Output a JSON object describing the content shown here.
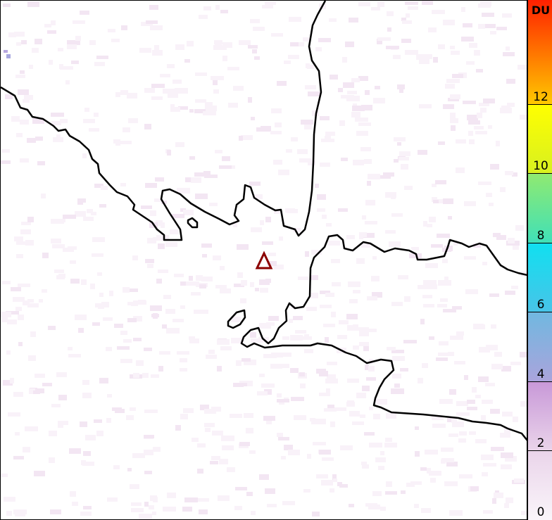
{
  "colorbar": {
    "unit": "DU",
    "range": [
      0,
      15
    ],
    "ticks": [
      {
        "value": 0,
        "label": "0"
      },
      {
        "value": 2,
        "label": "2"
      },
      {
        "value": 4,
        "label": "4"
      },
      {
        "value": 6,
        "label": "6"
      },
      {
        "value": 8,
        "label": "8"
      },
      {
        "value": 10,
        "label": "10"
      },
      {
        "value": 12,
        "label": "12"
      }
    ],
    "color_stops": [
      {
        "value": 0,
        "color": "#faf5fa"
      },
      {
        "value": 2,
        "color": "#ead4ea"
      },
      {
        "value": 4,
        "color": "#c898d8"
      },
      {
        "value": 4,
        "color": "#aaa4dc"
      },
      {
        "value": 6,
        "color": "#70b8e0"
      },
      {
        "value": 6,
        "color": "#48c4e8"
      },
      {
        "value": 8,
        "color": "#10e0f0"
      },
      {
        "value": 8,
        "color": "#40e0b8"
      },
      {
        "value": 10,
        "color": "#90ea70"
      },
      {
        "value": 10,
        "color": "#d8f020"
      },
      {
        "value": 12,
        "color": "#ffff00"
      },
      {
        "value": 12,
        "color": "#ffc800"
      },
      {
        "value": 15,
        "color": "#ff2000"
      }
    ]
  },
  "map": {
    "coastline_color": "#000000",
    "marker": {
      "shape": "triangle",
      "color": "#8b0000"
    },
    "background_values_DU": "0-1"
  }
}
